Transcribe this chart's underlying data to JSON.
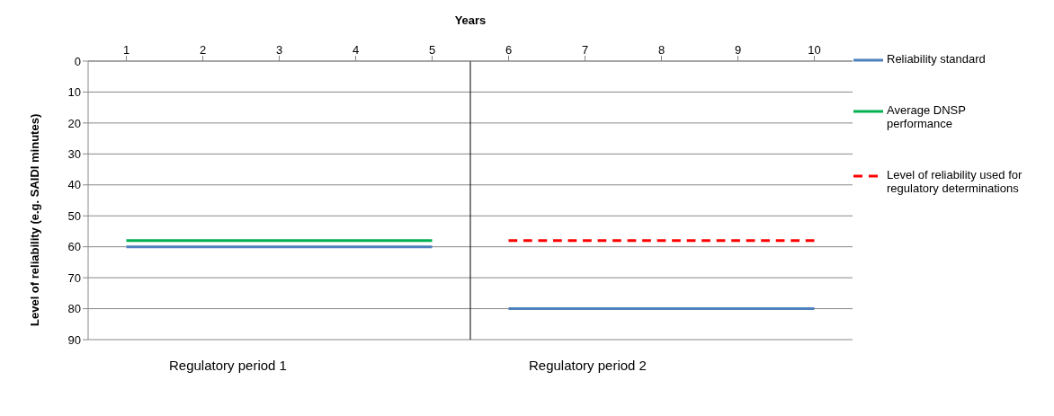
{
  "chart_data": {
    "type": "line",
    "xlabel": "Years",
    "ylabel": "Level of reliability (e.g. SAIDI minutes)",
    "x": [
      1,
      2,
      3,
      4,
      5,
      6,
      7,
      8,
      9,
      10
    ],
    "xlim": [
      0.5,
      10.5
    ],
    "xticks": [
      1,
      2,
      3,
      4,
      5,
      6,
      7,
      8,
      9,
      10
    ],
    "ylim": [
      90,
      0
    ],
    "yticks": [
      0,
      10,
      20,
      30,
      40,
      50,
      60,
      70,
      80,
      90
    ],
    "grid": "y",
    "legend": "right",
    "marker": "none",
    "series": [
      {
        "name": "Reliability standard",
        "color": "#4f81bd",
        "values": [
          60,
          60,
          60,
          60,
          60,
          null,
          null,
          null,
          null,
          null
        ]
      },
      {
        "color": "#4f81bd",
        "values": [
          null,
          null,
          null,
          null,
          null,
          80,
          80,
          80,
          80,
          80
        ]
      },
      {
        "name": "Average DNSP performance",
        "color": "#00b050",
        "values": [
          58,
          58,
          58,
          58,
          58,
          null,
          null,
          null,
          null,
          null
        ]
      },
      {
        "name": "Level of reliability used for regulatory determinations",
        "color": "#ff0000",
        "line_style": "dashed",
        "values": [
          null,
          null,
          null,
          null,
          null,
          58,
          58,
          58,
          58,
          58
        ]
      }
    ],
    "ref_lines": [
      {
        "axis": "x",
        "value": 5.5,
        "color": "#000000"
      }
    ],
    "annotations": [
      "Regulatory period 1",
      "Regulatory period 2"
    ]
  }
}
